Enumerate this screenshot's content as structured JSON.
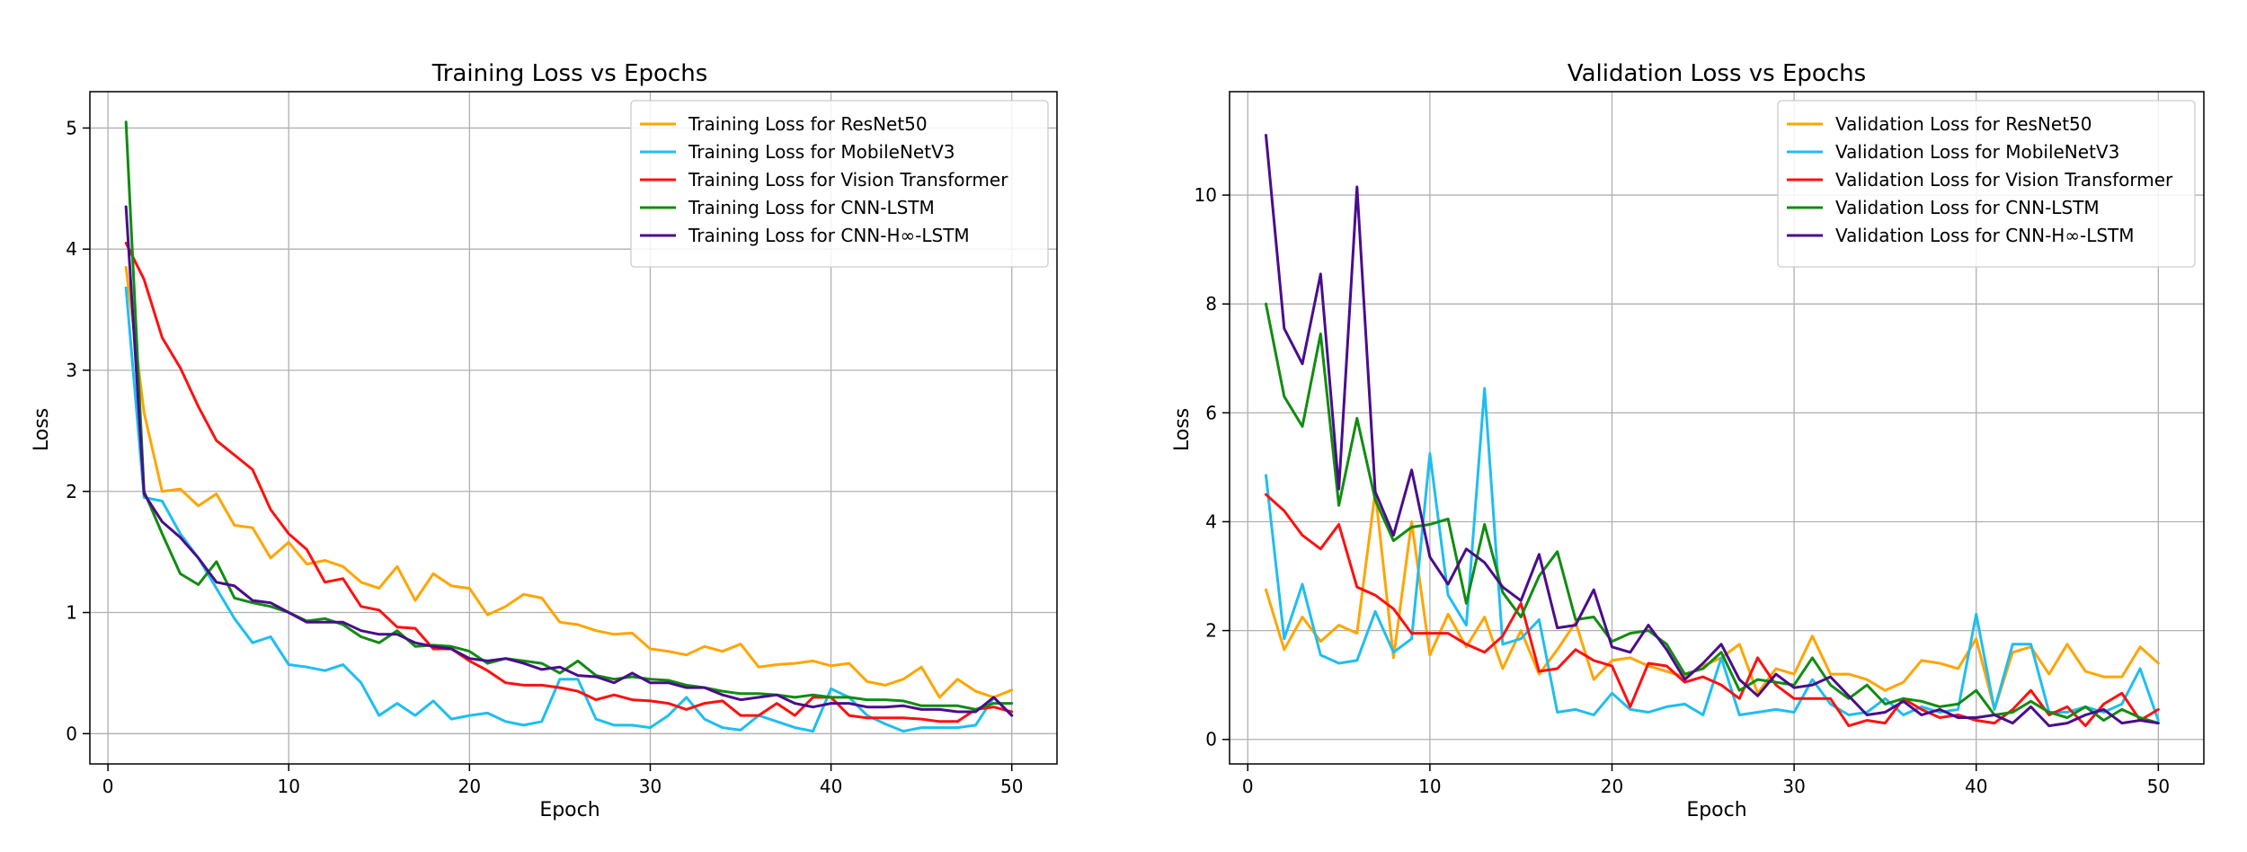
{
  "chart_data": [
    {
      "type": "line",
      "title": "Training Loss vs Epochs",
      "xlabel": "Epoch",
      "ylabel": "Loss",
      "xlim": [
        -1,
        52.5
      ],
      "ylim": [
        -0.25,
        5.3
      ],
      "xticks": [
        0,
        10,
        20,
        30,
        40,
        50
      ],
      "yticks": [
        0,
        1,
        2,
        3,
        4,
        5
      ],
      "grid": true,
      "legend": "top-right",
      "x": [
        1,
        2,
        3,
        4,
        5,
        6,
        7,
        8,
        9,
        10,
        11,
        12,
        13,
        14,
        15,
        16,
        17,
        18,
        19,
        20,
        21,
        22,
        23,
        24,
        25,
        26,
        27,
        28,
        29,
        30,
        31,
        32,
        33,
        34,
        35,
        36,
        37,
        38,
        39,
        40,
        41,
        42,
        43,
        44,
        45,
        46,
        47,
        48,
        49,
        50
      ],
      "series": [
        {
          "name": "Training Loss for ResNet50",
          "color": "#FFA500",
          "values": [
            3.85,
            2.65,
            2.0,
            2.02,
            1.88,
            1.98,
            1.72,
            1.7,
            1.45,
            1.58,
            1.4,
            1.43,
            1.38,
            1.25,
            1.2,
            1.38,
            1.1,
            1.32,
            1.22,
            1.2,
            0.98,
            1.05,
            1.15,
            1.12,
            0.92,
            0.9,
            0.85,
            0.82,
            0.83,
            0.7,
            0.68,
            0.65,
            0.72,
            0.68,
            0.74,
            0.55,
            0.57,
            0.58,
            0.6,
            0.56,
            0.58,
            0.43,
            0.4,
            0.45,
            0.55,
            0.3,
            0.45,
            0.35,
            0.3,
            0.36
          ]
        },
        {
          "name": "Training Loss for MobileNetV3",
          "color": "#1EBEF0",
          "values": [
            3.68,
            1.95,
            1.92,
            1.65,
            1.45,
            1.2,
            0.95,
            0.75,
            0.8,
            0.57,
            0.55,
            0.52,
            0.57,
            0.42,
            0.15,
            0.25,
            0.15,
            0.27,
            0.12,
            0.15,
            0.17,
            0.1,
            0.07,
            0.1,
            0.45,
            0.45,
            0.12,
            0.07,
            0.07,
            0.05,
            0.15,
            0.3,
            0.12,
            0.05,
            0.03,
            0.15,
            0.1,
            0.05,
            0.02,
            0.37,
            0.3,
            0.15,
            0.08,
            0.02,
            0.05,
            0.05,
            0.05,
            0.07,
            0.3,
            0.15
          ]
        },
        {
          "name": "Training Loss for Vision Transformer",
          "color": "#FF1010",
          "values": [
            4.05,
            3.75,
            3.27,
            3.02,
            2.7,
            2.42,
            2.3,
            2.18,
            1.85,
            1.65,
            1.52,
            1.25,
            1.28,
            1.05,
            1.02,
            0.88,
            0.87,
            0.7,
            0.7,
            0.6,
            0.52,
            0.42,
            0.4,
            0.4,
            0.38,
            0.35,
            0.28,
            0.32,
            0.28,
            0.27,
            0.25,
            0.2,
            0.25,
            0.27,
            0.15,
            0.15,
            0.25,
            0.15,
            0.3,
            0.3,
            0.15,
            0.13,
            0.13,
            0.13,
            0.12,
            0.1,
            0.1,
            0.2,
            0.22,
            0.18
          ]
        },
        {
          "name": "Training Loss for CNN-LSTM",
          "color": "#108C10",
          "values": [
            5.05,
            2.0,
            1.65,
            1.32,
            1.23,
            1.42,
            1.12,
            1.08,
            1.05,
            1.0,
            0.93,
            0.95,
            0.9,
            0.8,
            0.75,
            0.85,
            0.72,
            0.73,
            0.72,
            0.68,
            0.58,
            0.62,
            0.6,
            0.58,
            0.5,
            0.6,
            0.48,
            0.45,
            0.47,
            0.45,
            0.44,
            0.4,
            0.38,
            0.35,
            0.33,
            0.33,
            0.32,
            0.3,
            0.32,
            0.3,
            0.3,
            0.28,
            0.28,
            0.27,
            0.23,
            0.23,
            0.23,
            0.2,
            0.25,
            0.25
          ]
        },
        {
          "name": "Training Loss for CNN-H∞-LSTM",
          "color": "#4B0C8C",
          "values": [
            4.35,
            1.98,
            1.75,
            1.62,
            1.45,
            1.25,
            1.22,
            1.1,
            1.08,
            1.0,
            0.92,
            0.92,
            0.92,
            0.85,
            0.82,
            0.82,
            0.75,
            0.72,
            0.7,
            0.62,
            0.6,
            0.62,
            0.58,
            0.53,
            0.55,
            0.48,
            0.47,
            0.42,
            0.5,
            0.42,
            0.42,
            0.38,
            0.38,
            0.32,
            0.28,
            0.3,
            0.32,
            0.25,
            0.22,
            0.25,
            0.25,
            0.22,
            0.22,
            0.23,
            0.2,
            0.2,
            0.18,
            0.18,
            0.3,
            0.15
          ]
        }
      ]
    },
    {
      "type": "line",
      "title": "Validation Loss vs Epochs",
      "xlabel": "Epoch",
      "ylabel": "Loss",
      "xlim": [
        -1,
        52.5
      ],
      "ylim": [
        -0.45,
        11.9
      ],
      "xticks": [
        0,
        10,
        20,
        30,
        40,
        50
      ],
      "yticks": [
        0,
        2,
        4,
        6,
        8,
        10
      ],
      "grid": true,
      "legend": "top-right",
      "x": [
        1,
        2,
        3,
        4,
        5,
        6,
        7,
        8,
        9,
        10,
        11,
        12,
        13,
        14,
        15,
        16,
        17,
        18,
        19,
        20,
        21,
        22,
        23,
        24,
        25,
        26,
        27,
        28,
        29,
        30,
        31,
        32,
        33,
        34,
        35,
        36,
        37,
        38,
        39,
        40,
        41,
        42,
        43,
        44,
        45,
        46,
        47,
        48,
        49,
        50
      ],
      "series": [
        {
          "name": "Validation Loss for ResNet50",
          "color": "#FFA500",
          "values": [
            2.75,
            1.65,
            2.25,
            1.8,
            2.1,
            1.95,
            4.55,
            1.5,
            4.0,
            1.55,
            2.3,
            1.7,
            2.25,
            1.3,
            2.0,
            1.2,
            1.65,
            2.15,
            1.1,
            1.45,
            1.5,
            1.35,
            1.25,
            1.15,
            1.35,
            1.5,
            1.75,
            0.85,
            1.3,
            1.2,
            1.9,
            1.2,
            1.2,
            1.1,
            0.9,
            1.05,
            1.45,
            1.4,
            1.3,
            1.85,
            0.55,
            1.6,
            1.7,
            1.2,
            1.75,
            1.25,
            1.15,
            1.15,
            1.7,
            1.4
          ]
        },
        {
          "name": "Validation Loss for MobileNetV3",
          "color": "#1EBEF0",
          "values": [
            4.85,
            1.85,
            2.85,
            1.55,
            1.4,
            1.45,
            2.35,
            1.6,
            1.85,
            5.25,
            2.65,
            2.1,
            6.45,
            1.75,
            1.85,
            2.2,
            0.5,
            0.55,
            0.45,
            0.85,
            0.55,
            0.5,
            0.6,
            0.65,
            0.45,
            1.5,
            0.45,
            0.5,
            0.55,
            0.5,
            1.1,
            0.65,
            0.45,
            0.5,
            0.75,
            0.45,
            0.6,
            0.5,
            0.55,
            2.3,
            0.55,
            1.75,
            1.75,
            0.5,
            0.5,
            0.6,
            0.5,
            0.65,
            1.3,
            0.35
          ]
        },
        {
          "name": "Validation Loss for Vision Transformer",
          "color": "#FF1010",
          "values": [
            4.5,
            4.2,
            3.75,
            3.5,
            3.95,
            2.8,
            2.65,
            2.4,
            1.95,
            1.95,
            1.95,
            1.75,
            1.6,
            1.9,
            2.5,
            1.25,
            1.3,
            1.65,
            1.45,
            1.35,
            0.6,
            1.4,
            1.35,
            1.05,
            1.15,
            1.0,
            0.75,
            1.5,
            1.0,
            0.75,
            0.75,
            0.75,
            0.25,
            0.35,
            0.3,
            0.75,
            0.55,
            0.4,
            0.45,
            0.35,
            0.3,
            0.55,
            0.9,
            0.45,
            0.6,
            0.25,
            0.65,
            0.85,
            0.35,
            0.55
          ]
        },
        {
          "name": "Validation Loss for CNN-LSTM",
          "color": "#108C10",
          "values": [
            8.0,
            6.3,
            5.75,
            7.45,
            4.3,
            5.9,
            4.4,
            3.65,
            3.9,
            3.95,
            4.05,
            2.5,
            3.95,
            2.7,
            2.25,
            3.0,
            3.45,
            2.2,
            2.25,
            1.8,
            1.95,
            2.0,
            1.75,
            1.2,
            1.3,
            1.6,
            0.9,
            1.1,
            1.05,
            1.0,
            1.5,
            1.0,
            0.75,
            1.0,
            0.65,
            0.75,
            0.7,
            0.6,
            0.65,
            0.9,
            0.45,
            0.5,
            0.7,
            0.5,
            0.4,
            0.6,
            0.35,
            0.55,
            0.4,
            0.3
          ]
        },
        {
          "name": "Validation Loss for CNN-H∞-LSTM",
          "color": "#4B0C8C",
          "values": [
            11.1,
            7.55,
            6.9,
            8.55,
            4.6,
            10.15,
            4.55,
            3.75,
            4.95,
            3.35,
            2.85,
            3.5,
            3.25,
            2.8,
            2.55,
            3.4,
            2.05,
            2.1,
            2.75,
            1.7,
            1.6,
            2.1,
            1.65,
            1.1,
            1.4,
            1.75,
            1.1,
            0.8,
            1.2,
            0.95,
            1.0,
            1.15,
            0.8,
            0.45,
            0.5,
            0.7,
            0.45,
            0.55,
            0.4,
            0.4,
            0.45,
            0.3,
            0.6,
            0.25,
            0.3,
            0.45,
            0.55,
            0.3,
            0.35,
            0.3
          ]
        }
      ]
    }
  ]
}
